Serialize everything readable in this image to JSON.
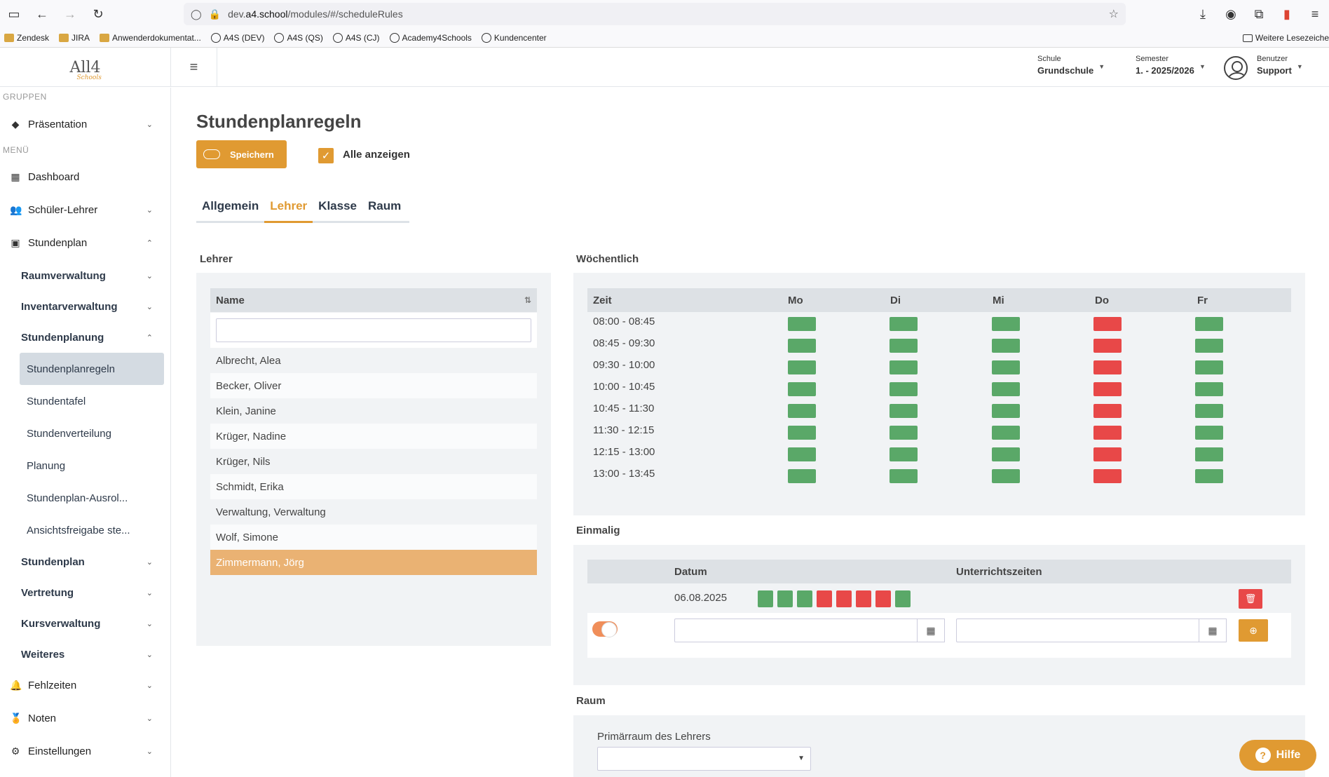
{
  "browser": {
    "url_prefix": "dev.",
    "url_host": "a4.school",
    "url_path": "/modules/#/scheduleRules",
    "bookmarks": [
      "Zendesk",
      "JIRA",
      "Anwenderdokumentat...",
      "A4S (DEV)",
      "A4S (QS)",
      "A4S (CJ)",
      "Academy4Schools",
      "Kundencenter"
    ],
    "other_bookmarks": "Weitere Lesezeiche"
  },
  "header": {
    "logo_text": "All4",
    "logo_sub": "Schools",
    "school_label": "Schule",
    "school_value": "Grundschule",
    "semester_label": "Semester",
    "semester_value": "1. - 2025/2026",
    "user_label": "Benutzer",
    "user_value": "Support"
  },
  "sidebar": {
    "groups_title": "GRUPPEN",
    "menu_title": "MENÜ",
    "groups": [
      {
        "label": "Präsentation"
      }
    ],
    "items": [
      {
        "label": "Dashboard"
      },
      {
        "label": "Schüler-Lehrer"
      },
      {
        "label": "Stundenplan"
      }
    ],
    "sub": [
      {
        "label": "Raumverwaltung"
      },
      {
        "label": "Inventarverwaltung"
      },
      {
        "label": "Stundenplanung"
      }
    ],
    "leaves": [
      {
        "label": "Stundenplanregeln"
      },
      {
        "label": "Stundentafel"
      },
      {
        "label": "Stundenverteilung"
      },
      {
        "label": "Planung"
      },
      {
        "label": "Stundenplan-Ausrol..."
      },
      {
        "label": "Ansichtsfreigabe ste..."
      }
    ],
    "sub2": [
      {
        "label": "Stundenplan"
      },
      {
        "label": "Vertretung"
      },
      {
        "label": "Kursverwaltung"
      },
      {
        "label": "Weiteres"
      }
    ],
    "bottom": [
      {
        "label": "Fehlzeiten"
      },
      {
        "label": "Noten"
      },
      {
        "label": "Einstellungen"
      }
    ]
  },
  "main": {
    "title": "Stundenplanregeln",
    "save_label": "Speichern",
    "show_all_label": "Alle anzeigen",
    "tabs": [
      {
        "label": "Allgemein"
      },
      {
        "label": "Lehrer"
      },
      {
        "label": "Klasse"
      },
      {
        "label": "Raum"
      }
    ],
    "teacher_section": "Lehrer",
    "name_header": "Name",
    "teachers": [
      "Albrecht, Alea",
      "Becker, Oliver",
      "Klein, Janine",
      "Krüger, Nadine",
      "Krüger, Nils",
      "Schmidt, Erika",
      "Verwaltung, Verwaltung",
      "Wolf, Simone",
      "Zimmermann, Jörg"
    ],
    "selected_teacher": "Zimmermann, Jörg",
    "weekly": {
      "section": "Wöchentlich",
      "time_header": "Zeit",
      "days": [
        "Mo",
        "Di",
        "Mi",
        "Do",
        "Fr"
      ],
      "times": [
        "08:00 - 08:45",
        "08:45 - 09:30",
        "09:30 - 10:00",
        "10:00 - 10:45",
        "10:45 - 11:30",
        "11:30 - 12:15",
        "12:15 - 13:00",
        "13:00 - 13:45"
      ],
      "blocked_day": "Do",
      "colors": {
        "available": "#5aa868",
        "blocked": "#e84848"
      }
    },
    "once": {
      "section": "Einmalig",
      "date_header": "Datum",
      "times_header": "Unterrichtszeiten",
      "entries": [
        {
          "date": "06.08.2025",
          "slots": [
            "green",
            "green",
            "green",
            "red",
            "red",
            "red",
            "red",
            "green"
          ]
        }
      ]
    },
    "room": {
      "section": "Raum",
      "primary_label": "Primärraum des Lehrers"
    },
    "help_label": "Hilfe"
  }
}
